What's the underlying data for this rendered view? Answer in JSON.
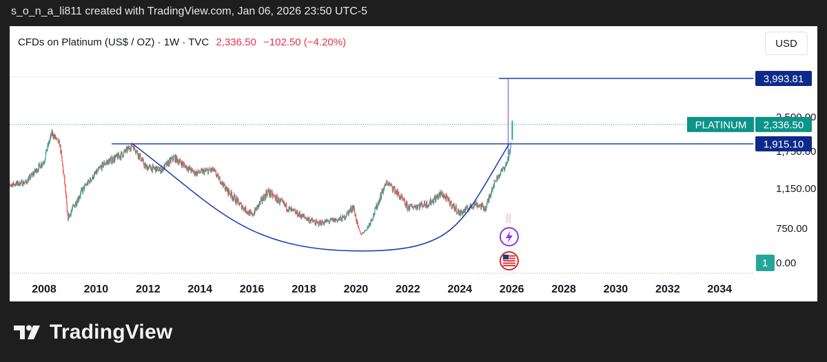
{
  "header": {
    "caption": "s_o_n_a_li811 created with TradingView.com, Jan 06, 2026 23:50 UTC-5"
  },
  "chart_header": {
    "instrument": "CFDs on Platinum (US$ / OZ) · 1W · TVC",
    "price": "2,336.50",
    "change": "−102.50 (−4.20%)",
    "currency_button": "USD"
  },
  "footer": {
    "brand": "TradingView"
  },
  "colors": {
    "background": "#1e1e1e",
    "panel": "#ffffff",
    "up_candle": "#26a69a",
    "down_candle": "#ef5350",
    "trendline": "#1e40af",
    "price_label": "#0d9488",
    "level_label": "#0d2a8a"
  },
  "chart_data": {
    "type": "candlestick",
    "symbol": "PLATINUM",
    "x_tick_labels": [
      "2008",
      "2010",
      "2012",
      "2014",
      "2016",
      "2018",
      "2020",
      "2022",
      "2024",
      "2026",
      "2028",
      "2030",
      "2032",
      "2034"
    ],
    "y_tick_labels": [
      "0.00",
      "750.00",
      "1,150.00",
      "1,750.00",
      "2,500.00"
    ],
    "y_tick_values": [
      0,
      750,
      1150,
      1750,
      2500
    ],
    "approx_price_path": [
      {
        "x": 2006.5,
        "y": 1200
      },
      {
        "x": 2007.3,
        "y": 1250
      },
      {
        "x": 2008.0,
        "y": 1600
      },
      {
        "x": 2008.3,
        "y": 2150
      },
      {
        "x": 2008.6,
        "y": 1900
      },
      {
        "x": 2008.9,
        "y": 850
      },
      {
        "x": 2009.5,
        "y": 1150
      },
      {
        "x": 2010.3,
        "y": 1550
      },
      {
        "x": 2011.0,
        "y": 1700
      },
      {
        "x": 2011.4,
        "y": 1880
      },
      {
        "x": 2011.9,
        "y": 1500
      },
      {
        "x": 2012.5,
        "y": 1450
      },
      {
        "x": 2013.0,
        "y": 1650
      },
      {
        "x": 2013.8,
        "y": 1400
      },
      {
        "x": 2014.5,
        "y": 1450
      },
      {
        "x": 2015.0,
        "y": 1150
      },
      {
        "x": 2015.5,
        "y": 1000
      },
      {
        "x": 2016.0,
        "y": 880
      },
      {
        "x": 2016.6,
        "y": 1120
      },
      {
        "x": 2017.5,
        "y": 930
      },
      {
        "x": 2018.5,
        "y": 800
      },
      {
        "x": 2019.5,
        "y": 850
      },
      {
        "x": 2019.9,
        "y": 970
      },
      {
        "x": 2020.2,
        "y": 620
      },
      {
        "x": 2020.7,
        "y": 900
      },
      {
        "x": 2021.2,
        "y": 1250
      },
      {
        "x": 2021.6,
        "y": 1100
      },
      {
        "x": 2022.0,
        "y": 960
      },
      {
        "x": 2022.8,
        "y": 1000
      },
      {
        "x": 2023.3,
        "y": 1100
      },
      {
        "x": 2024.0,
        "y": 900
      },
      {
        "x": 2024.6,
        "y": 1000
      },
      {
        "x": 2025.0,
        "y": 950
      },
      {
        "x": 2025.4,
        "y": 1300
      },
      {
        "x": 2025.8,
        "y": 1550
      },
      {
        "x": 2025.95,
        "y": 1800
      },
      {
        "x": 2026.02,
        "y": 2336.5
      }
    ],
    "spike_high": 3993.81,
    "current_price": 2336.5,
    "current_price_label": "2,336.50",
    "symbol_label": "PLATINUM",
    "resistance": {
      "value": 1915.1,
      "label": "1,915.10",
      "x_start": 2010.6,
      "x_end": 2035.3
    },
    "spike_level": {
      "value": 3993.81,
      "label": "3,993.81",
      "x_start": 2025.5,
      "x_end": 2035.3
    },
    "cup_curve": {
      "left_x": 2011.4,
      "left_y": 1915.1,
      "bottom_x": 2020.2,
      "bottom_y": 260,
      "right_x": 2025.9,
      "right_y": 1915.1
    },
    "event_badge": "1"
  }
}
